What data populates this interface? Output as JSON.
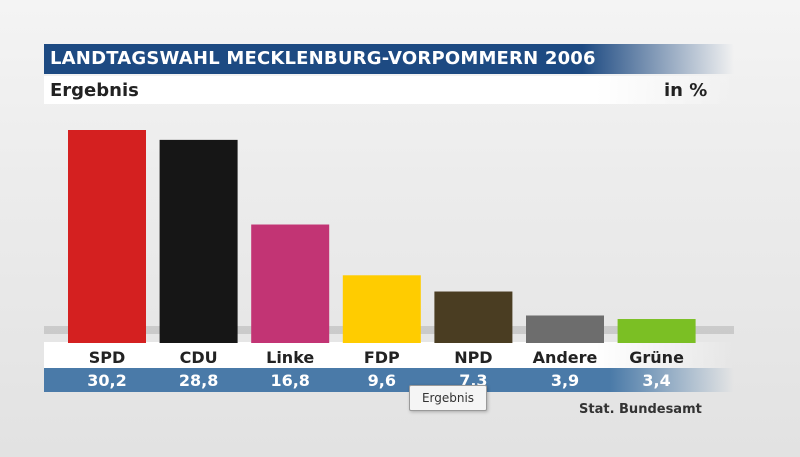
{
  "header": {
    "title": "LANDTAGSWAHL MECKLENBURG-VORPOMMERN 2006",
    "subtitle": "Ergebnis",
    "unit": "in %"
  },
  "source": "Stat. Bundesamt",
  "tooltip": "Ergebnis",
  "chart_data": {
    "type": "bar",
    "title": "LANDTAGSWAHL MECKLENBURG-VORPOMMERN 2006",
    "subtitle": "Ergebnis",
    "ylabel": "in %",
    "ylim": [
      0,
      30.2
    ],
    "grid": false,
    "categories": [
      "SPD",
      "CDU",
      "Linke",
      "FDP",
      "NPD",
      "Andere",
      "Grüne"
    ],
    "values": [
      30.2,
      28.8,
      16.8,
      9.6,
      7.3,
      3.9,
      3.4
    ],
    "value_labels": [
      "30,2",
      "28,8",
      "16,8",
      "9,6",
      "7,3",
      "3,9",
      "3,4"
    ],
    "colors": [
      "#d42020",
      "#161616",
      "#c23474",
      "#ffcc00",
      "#4a3d22",
      "#6d6d6d",
      "#7bbf24"
    ]
  }
}
